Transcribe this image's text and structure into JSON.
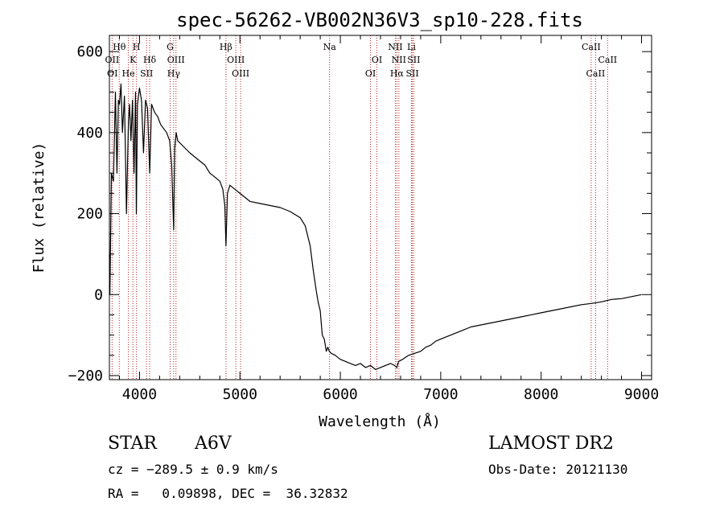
{
  "chart_data": {
    "type": "line",
    "title": "spec-56262-VB002N36V3_sp10-228.fits",
    "xlabel": "Wavelength (Å)",
    "ylabel": "Flux (relative)",
    "xlim": [
      3700,
      9100
    ],
    "ylim": [
      -210,
      640
    ],
    "xticks": [
      4000,
      5000,
      6000,
      7000,
      8000,
      9000
    ],
    "xtick_labels": [
      "4000",
      "5000",
      "6000",
      "7000",
      "8000",
      "9000"
    ],
    "yticks": [
      -200,
      0,
      200,
      400,
      600
    ],
    "ytick_labels": [
      "−200",
      "0",
      "200",
      "400",
      "600"
    ],
    "grid": false,
    "line_color": "#000000",
    "marker_color": "#b22222",
    "series": [
      {
        "x": [
          3700,
          3705,
          3720,
          3740,
          3760,
          3775,
          3790,
          3800,
          3815,
          3830,
          3850,
          3870,
          3890,
          3900,
          3915,
          3930,
          3945,
          3960,
          3968,
          3980,
          4000,
          4020,
          4040,
          4060,
          4080,
          4101,
          4120,
          4150,
          4180,
          4210,
          4240,
          4270,
          4300,
          4320,
          4340,
          4350,
          4365,
          4380,
          4420,
          4460,
          4500,
          4550,
          4600,
          4650,
          4700,
          4750,
          4800,
          4830,
          4850,
          4861,
          4875,
          4900,
          4950,
          5000,
          5050,
          5100,
          5200,
          5300,
          5400,
          5500,
          5600,
          5650,
          5700,
          5730,
          5760,
          5780,
          5800,
          5820,
          5840,
          5860,
          5875,
          5890,
          5910,
          5950,
          6000,
          6050,
          6100,
          6150,
          6200,
          6250,
          6300,
          6350,
          6400,
          6450,
          6500,
          6540,
          6563,
          6580,
          6620,
          6680,
          6740,
          6800,
          6850,
          6900,
          6950,
          7000,
          7100,
          7200,
          7300,
          7400,
          7500,
          7600,
          7700,
          7800,
          7900,
          8000,
          8100,
          8200,
          8300,
          8400,
          8500,
          8600,
          8700,
          8800,
          8900,
          9000
        ],
        "y": [
          100,
          0,
          300,
          280,
          500,
          300,
          480,
          470,
          520,
          400,
          490,
          200,
          430,
          470,
          380,
          480,
          300,
          500,
          200,
          470,
          510,
          480,
          350,
          480,
          460,
          300,
          470,
          450,
          440,
          420,
          410,
          400,
          380,
          320,
          160,
          360,
          400,
          380,
          370,
          360,
          350,
          340,
          330,
          320,
          300,
          290,
          280,
          260,
          220,
          120,
          250,
          270,
          260,
          250,
          240,
          230,
          225,
          220,
          215,
          205,
          190,
          170,
          120,
          60,
          10,
          -20,
          -40,
          -100,
          -110,
          -140,
          -130,
          -140,
          -145,
          -150,
          -160,
          -165,
          -170,
          -175,
          -170,
          -180,
          -175,
          -185,
          -180,
          -175,
          -170,
          -175,
          -180,
          -165,
          -160,
          -150,
          -145,
          -140,
          -130,
          -125,
          -115,
          -110,
          -100,
          -90,
          -80,
          -75,
          -70,
          -65,
          -60,
          -55,
          -50,
          -45,
          -40,
          -35,
          -30,
          -25,
          -22,
          -18,
          -12,
          -10,
          -5,
          0
        ]
      }
    ],
    "annotations": [
      {
        "label": "Hθ",
        "x": 3798,
        "row": 1
      },
      {
        "label": "H",
        "x": 3970,
        "row": 1
      },
      {
        "label": "G",
        "x": 4305,
        "row": 1
      },
      {
        "label": "Hβ",
        "x": 4861,
        "row": 1
      },
      {
        "label": "Na",
        "x": 5893,
        "row": 1
      },
      {
        "label": "NII",
        "x": 6548,
        "row": 1
      },
      {
        "label": "Li",
        "x": 6708,
        "row": 1
      },
      {
        "label": "CaII",
        "x": 8498,
        "row": 1
      },
      {
        "label": "OII",
        "x": 3727,
        "row": 2
      },
      {
        "label": "K",
        "x": 3934,
        "row": 2
      },
      {
        "label": "Hδ",
        "x": 4101,
        "row": 2
      },
      {
        "label": "OIII",
        "x": 4363,
        "row": 2
      },
      {
        "label": "OIII",
        "x": 4959,
        "row": 2
      },
      {
        "label": "OI",
        "x": 6364,
        "row": 2
      },
      {
        "label": "NII",
        "x": 6583,
        "row": 2
      },
      {
        "label": "SII",
        "x": 6731,
        "row": 2
      },
      {
        "label": "CaII",
        "x": 8662,
        "row": 2
      },
      {
        "label": "OI",
        "x": 3730,
        "row": 3
      },
      {
        "label": "He",
        "x": 3889,
        "row": 3
      },
      {
        "label": "SII",
        "x": 4070,
        "row": 3
      },
      {
        "label": "Hγ",
        "x": 4340,
        "row": 3
      },
      {
        "label": "OIII",
        "x": 5007,
        "row": 3
      },
      {
        "label": "OI",
        "x": 6300,
        "row": 3
      },
      {
        "label": "Hα",
        "x": 6563,
        "row": 3
      },
      {
        "label": "SII",
        "x": 6717,
        "row": 3
      },
      {
        "label": "CaII",
        "x": 8542,
        "row": 3
      }
    ],
    "line_markers": [
      3727,
      3798,
      3889,
      3934,
      3970,
      4070,
      4101,
      4305,
      4340,
      4363,
      4861,
      4959,
      5007,
      5893,
      6300,
      6364,
      6548,
      6563,
      6583,
      6708,
      6717,
      6731,
      8498,
      8542,
      8662
    ]
  },
  "info": {
    "object_class": "STAR",
    "subclass": "A6V",
    "survey": "LAMOST DR2",
    "cz": "cz = −289.5 ± 0.9 km/s",
    "obs_date": "Obs-Date: 20121130",
    "radec": "RA =   0.09898, DEC =  36.32832"
  }
}
